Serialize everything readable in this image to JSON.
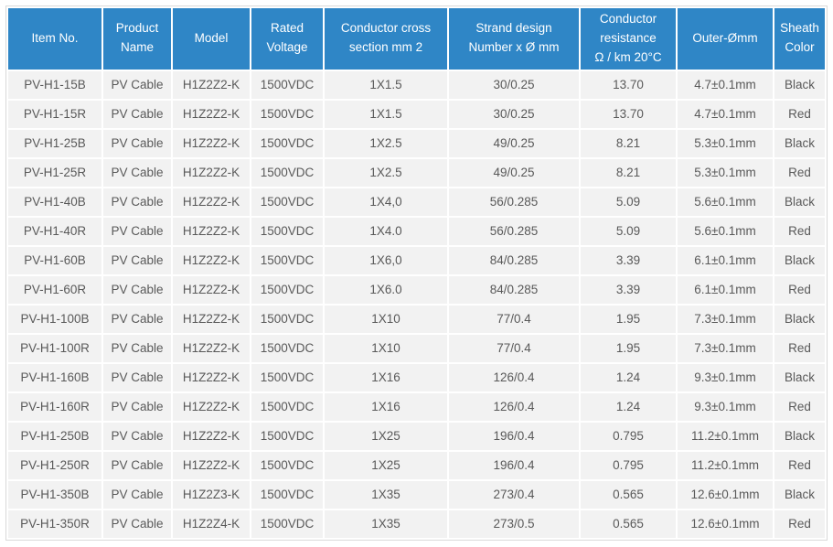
{
  "table": {
    "columns": [
      {
        "id": "item-no",
        "label": "Item No."
      },
      {
        "id": "product-name",
        "label": "Product\nName"
      },
      {
        "id": "model",
        "label": "Model"
      },
      {
        "id": "rated-voltage",
        "label": "Rated\nVoltage"
      },
      {
        "id": "cross-section",
        "label": "Conductor cross\nsection mm 2"
      },
      {
        "id": "strand-design",
        "label": "Strand design\nNumber x Ø mm"
      },
      {
        "id": "resistance",
        "label": "Conductor\nresistance\nΩ / km 20°C"
      },
      {
        "id": "outer-diameter",
        "label": "Outer-Ømm"
      },
      {
        "id": "sheath-color",
        "label": "Sheath\nColor"
      }
    ],
    "rows": [
      [
        "PV-H1-15B",
        "PV Cable",
        "H1Z2Z2-K",
        "1500VDC",
        "1X1.5",
        "30/0.25",
        "13.70",
        "4.7±0.1mm",
        "Black"
      ],
      [
        "PV-H1-15R",
        "PV Cable",
        "H1Z2Z2-K",
        "1500VDC",
        "1X1.5",
        "30/0.25",
        "13.70",
        "4.7±0.1mm",
        "Red"
      ],
      [
        "PV-H1-25B",
        "PV Cable",
        "H1Z2Z2-K",
        "1500VDC",
        "1X2.5",
        "49/0.25",
        "8.21",
        "5.3±0.1mm",
        "Black"
      ],
      [
        "PV-H1-25R",
        "PV Cable",
        "H1Z2Z2-K",
        "1500VDC",
        "1X2.5",
        "49/0.25",
        "8.21",
        "5.3±0.1mm",
        "Red"
      ],
      [
        "PV-H1-40B",
        "PV Cable",
        "H1Z2Z2-K",
        "1500VDC",
        "1X4,0",
        "56/0.285",
        "5.09",
        "5.6±0.1mm",
        "Black"
      ],
      [
        "PV-H1-40R",
        "PV Cable",
        "H1Z2Z2-K",
        "1500VDC",
        "1X4.0",
        "56/0.285",
        "5.09",
        "5.6±0.1mm",
        "Red"
      ],
      [
        "PV-H1-60B",
        "PV Cable",
        "H1Z2Z2-K",
        "1500VDC",
        "1X6,0",
        "84/0.285",
        "3.39",
        "6.1±0.1mm",
        "Black"
      ],
      [
        "PV-H1-60R",
        "PV Cable",
        "H1Z2Z2-K",
        "1500VDC",
        "1X6.0",
        "84/0.285",
        "3.39",
        "6.1±0.1mm",
        "Red"
      ],
      [
        "PV-H1-100B",
        "PV Cable",
        "H1Z2Z2-K",
        "1500VDC",
        "1X10",
        "77/0.4",
        "1.95",
        "7.3±0.1mm",
        "Black"
      ],
      [
        "PV-H1-100R",
        "PV Cable",
        "H1Z2Z2-K",
        "1500VDC",
        "1X10",
        "77/0.4",
        "1.95",
        "7.3±0.1mm",
        "Red"
      ],
      [
        "PV-H1-160B",
        "PV Cable",
        "H1Z2Z2-K",
        "1500VDC",
        "1X16",
        "126/0.4",
        "1.24",
        "9.3±0.1mm",
        "Black"
      ],
      [
        "PV-H1-160R",
        "PV Cable",
        "H1Z2Z2-K",
        "1500VDC",
        "1X16",
        "126/0.4",
        "1.24",
        "9.3±0.1mm",
        "Red"
      ],
      [
        "PV-H1-250B",
        "PV Cable",
        "H1Z2Z2-K",
        "1500VDC",
        "1X25",
        "196/0.4",
        "0.795",
        "11.2±0.1mm",
        "Black"
      ],
      [
        "PV-H1-250R",
        "PV Cable",
        "H1Z2Z2-K",
        "1500VDC",
        "1X25",
        "196/0.4",
        "0.795",
        "11.2±0.1mm",
        "Red"
      ],
      [
        "PV-H1-350B",
        "PV Cable",
        "H1Z2Z3-K",
        "1500VDC",
        "1X35",
        "273/0.4",
        "0.565",
        "12.6±0.1mm",
        "Black"
      ],
      [
        "PV-H1-350R",
        "PV Cable",
        "H1Z2Z4-K",
        "1500VDC",
        "1X35",
        "273/0.5",
        "0.565",
        "12.6±0.1mm",
        "Red"
      ]
    ]
  },
  "colors": {
    "header_bg": "#2f86c6",
    "header_text": "#ffffff",
    "row_bg": "#f2f2f2",
    "cell_text": "#595959",
    "outer_border": "#d9d9d9",
    "separator": "#ffffff"
  }
}
